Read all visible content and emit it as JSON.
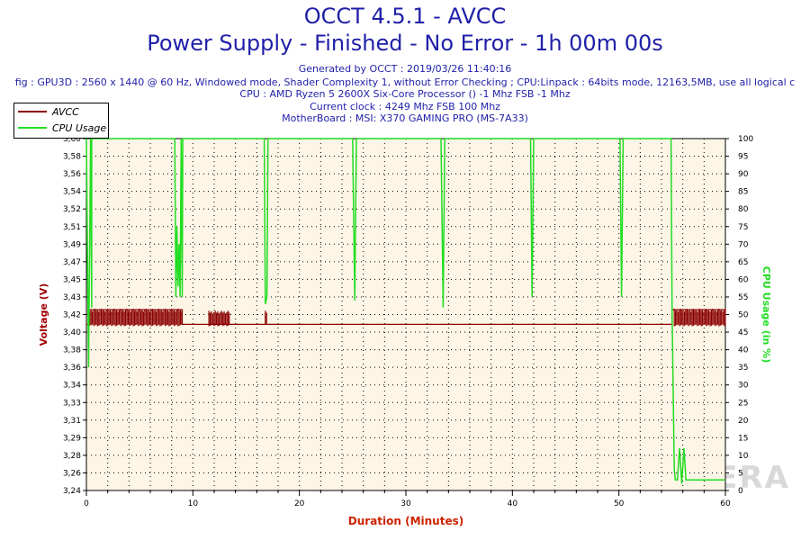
{
  "header": {
    "title_line1": "OCCT 4.5.1 - AVCC",
    "title_line2": "Power Supply - Finished - No Error - 1h 00m 00s",
    "generated": "Generated by OCCT : 2019/03/26 11:40:16",
    "config": "fig : GPU3D : 2560 x 1440 @ 60 Hz, Windowed mode, Shader Complexity 1, without Error Checking ; CPU:Linpack : 64bits mode, 12163,5MB, use all logical c",
    "cpu": "CPU : AMD Ryzen 5 2600X Six-Core Processor () -1 Mhz FSB -1 Mhz",
    "clock": "Current clock : 4249 Mhz FSB 100 Mhz",
    "motherboard": "MotherBoard : MSI: X370 GAMING PRO (MS-7A33)"
  },
  "watermark": "HARD WA   ERA",
  "colors": {
    "avcc": "#8b0000",
    "cpu": "#22dd22",
    "plot_bg": "#fdf5e6",
    "title": "#1f1fa8",
    "axis_label_left": "#a00000",
    "axis_label_right": "#22dd22",
    "axis_label_x": "#cc2200"
  },
  "chart_data": {
    "type": "line",
    "title": "Power Supply - Finished - No Error - 1h 00m 00s",
    "xlabel": "Duration (Minutes)",
    "ylabel_left": "Voltage (V)",
    "ylabel_right": "CPU Usage (in %)",
    "xlim": [
      0,
      60
    ],
    "ylim_left": [
      3.24,
      3.6
    ],
    "ylim_right": [
      0,
      100
    ],
    "x_ticks": [
      0,
      10,
      20,
      30,
      40,
      50,
      60
    ],
    "y_left_ticks": [
      "3,24",
      "3,26",
      "3,28",
      "3,29",
      "3,31",
      "3,33",
      "3,34",
      "3,36",
      "3,38",
      "3,40",
      "3,42",
      "3,43",
      "3,45",
      "3,47",
      "3,49",
      "3,51",
      "3,52",
      "3,54",
      "3,56",
      "3,58",
      "3,60"
    ],
    "y_right_ticks": [
      0,
      5,
      10,
      15,
      20,
      25,
      30,
      35,
      40,
      45,
      50,
      55,
      60,
      65,
      70,
      75,
      80,
      85,
      90,
      95,
      100
    ],
    "grid": true,
    "legend_position": "top-left",
    "series": [
      {
        "name": "AVCC",
        "axis": "left",
        "x": [
          0,
          0.2,
          0.2,
          9,
          9,
          55,
          55,
          60
        ],
        "y": [
          3.41,
          3.41,
          3.425,
          3.425,
          3.41,
          3.41,
          3.425,
          3.425
        ],
        "noise_band": [
          [
            0.2,
            9.0,
            3.408,
            3.426
          ],
          [
            11.5,
            13.5,
            3.408,
            3.424
          ],
          [
            16.8,
            17.0,
            3.41,
            3.424
          ],
          [
            55.2,
            60,
            3.408,
            3.426
          ]
        ]
      },
      {
        "name": "CPU Usage",
        "axis": "right",
        "x": [
          0,
          0.2,
          0.4,
          0.5,
          0.5,
          8.3,
          8.4,
          8.5,
          8.6,
          8.7,
          8.8,
          8.9,
          9.0,
          9.05,
          16.7,
          16.8,
          16.95,
          17.05,
          25.0,
          25.2,
          25.35,
          33.3,
          33.5,
          33.65,
          41.7,
          41.85,
          42.0,
          50.1,
          50.25,
          50.4,
          54.9,
          55.0,
          55.2,
          55.3,
          55.5,
          55.6,
          55.7,
          55.9,
          56.1,
          56.3,
          60
        ],
        "y": [
          100,
          35,
          100,
          52,
          100,
          100,
          55,
          75,
          58,
          70,
          55,
          100,
          55,
          100,
          100,
          53,
          55,
          100,
          100,
          54,
          100,
          100,
          52,
          100,
          100,
          55,
          100,
          100,
          55,
          100,
          100,
          50,
          6,
          3,
          3,
          8,
          12,
          2,
          12,
          3,
          3
        ]
      }
    ]
  }
}
